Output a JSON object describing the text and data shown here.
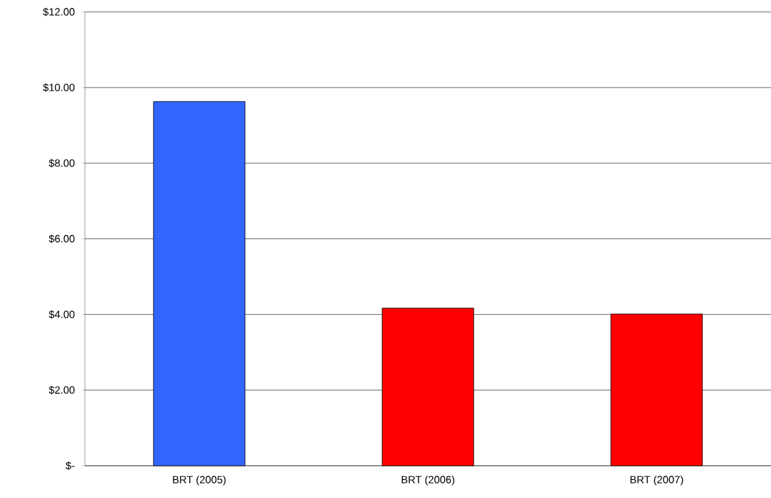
{
  "chart_data": {
    "type": "bar",
    "categories": [
      "BRT (2005)",
      "BRT (2006)",
      "BRT (2007)"
    ],
    "values": [
      9.63,
      4.17,
      4.01
    ],
    "colors": [
      "#3366ff",
      "#ff0000",
      "#ff0000"
    ],
    "ylim": [
      0,
      12
    ],
    "yticks": [
      {
        "value": 0,
        "label": "$-"
      },
      {
        "value": 2,
        "label": "$2.00"
      },
      {
        "value": 4,
        "label": "$4.00"
      },
      {
        "value": 6,
        "label": "$6.00"
      },
      {
        "value": 8,
        "label": "$8.00"
      },
      {
        "value": 10,
        "label": "$10.00"
      },
      {
        "value": 12,
        "label": "$12.00"
      }
    ],
    "grid": "y"
  }
}
